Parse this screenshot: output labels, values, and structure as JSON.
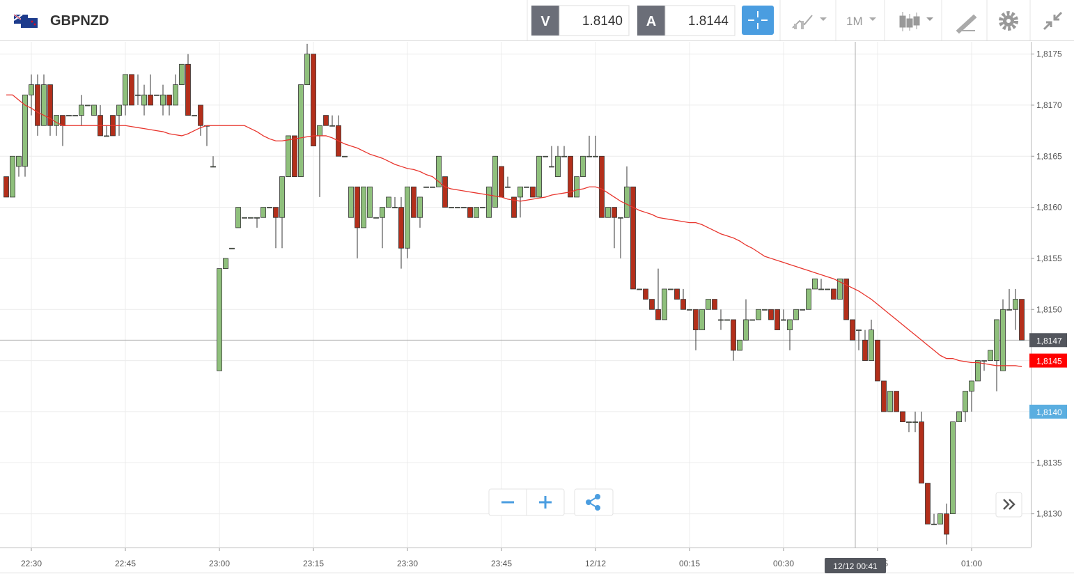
{
  "header": {
    "symbol": "GBPNZD",
    "sell_label": "V",
    "sell_price": "1.8140",
    "buy_label": "A",
    "buy_price": "1.8144",
    "timeframe": "1M"
  },
  "chart_data": {
    "type": "candlestick",
    "up_color": "#8fc07c",
    "down_color": "#b32f1b",
    "grid": true,
    "ylim": [
      1.81267,
      1.81762
    ],
    "yticks": [
      {
        "value": 1.813,
        "label": "1,8130"
      },
      {
        "value": 1.8135,
        "label": "1,8135"
      },
      {
        "value": 1.814,
        "label": "1,8140"
      },
      {
        "value": 1.8145,
        "label": "1,8145"
      },
      {
        "value": 1.815,
        "label": "1,8150"
      },
      {
        "value": 1.8155,
        "label": "1,8155"
      },
      {
        "value": 1.816,
        "label": "1,8160"
      },
      {
        "value": 1.8165,
        "label": "1,8165"
      },
      {
        "value": 1.817,
        "label": "1,8170"
      },
      {
        "value": 1.8175,
        "label": "1,8175"
      }
    ],
    "categories": [
      null,
      null,
      null,
      null,
      "22:30",
      null,
      null,
      null,
      null,
      null,
      null,
      null,
      null,
      null,
      null,
      null,
      null,
      null,
      null,
      "22:45",
      null,
      null,
      null,
      null,
      null,
      null,
      null,
      null,
      null,
      null,
      null,
      null,
      null,
      null,
      "23:00",
      null,
      null,
      null,
      null,
      null,
      null,
      null,
      null,
      null,
      null,
      null,
      null,
      null,
      null,
      "23:15",
      null,
      null,
      null,
      null,
      null,
      null,
      null,
      null,
      null,
      null,
      null,
      null,
      null,
      null,
      "23:30",
      null,
      null,
      null,
      null,
      null,
      null,
      null,
      null,
      null,
      null,
      null,
      null,
      null,
      null,
      "23:45",
      null,
      null,
      null,
      null,
      null,
      null,
      null,
      null,
      null,
      null,
      null,
      null,
      null,
      null,
      "12/12",
      null,
      null,
      null,
      null,
      null,
      null,
      null,
      null,
      null,
      null,
      null,
      null,
      null,
      null,
      "00:15",
      null,
      null,
      null,
      null,
      null,
      null,
      null,
      null,
      null,
      null,
      null,
      null,
      null,
      null,
      "00:30",
      null,
      null,
      null,
      null,
      null,
      null,
      null,
      null,
      null,
      null,
      null,
      null,
      null,
      null,
      "00:45",
      null,
      null,
      null,
      null,
      null,
      null,
      null,
      null,
      null,
      null,
      null,
      null,
      null,
      null,
      "01:00",
      null,
      null,
      null,
      null,
      null,
      null,
      null,
      null
    ],
    "ohlc": [
      [
        1.8163,
        1.8163,
        1.8161,
        1.8161
      ],
      [
        1.8161,
        1.8165,
        1.8161,
        1.8165
      ],
      [
        1.8164,
        1.8165,
        1.8163,
        1.8165
      ],
      [
        1.8164,
        1.8171,
        1.8163,
        1.8171
      ],
      [
        1.8171,
        1.8173,
        1.8169,
        1.8172
      ],
      [
        1.8172,
        1.8173,
        1.8167,
        1.8168
      ],
      [
        1.8168,
        1.8173,
        1.8168,
        1.8172
      ],
      [
        1.8172,
        1.8172,
        1.8167,
        1.8168
      ],
      [
        1.8168,
        1.8169,
        1.8167,
        1.8169
      ],
      [
        1.8169,
        1.8169,
        1.8166,
        1.8168
      ],
      [
        1.8169,
        1.8169,
        1.8169,
        1.8169
      ],
      [
        1.8169,
        1.8169,
        1.8169,
        1.8169
      ],
      [
        1.8169,
        1.8171,
        1.8168,
        1.817
      ],
      [
        1.817,
        1.817,
        1.817,
        1.817
      ],
      [
        1.8169,
        1.817,
        1.8169,
        1.817
      ],
      [
        1.8169,
        1.817,
        1.8167,
        1.8167
      ],
      [
        1.8167,
        1.8168,
        1.8167,
        1.8167
      ],
      [
        1.8169,
        1.8169,
        1.8167,
        1.8167
      ],
      [
        1.8169,
        1.817,
        1.8167,
        1.817
      ],
      [
        1.817,
        1.8173,
        1.8169,
        1.8173
      ],
      [
        1.8173,
        1.8173,
        1.817,
        1.817
      ],
      [
        1.8171,
        1.8173,
        1.817,
        1.8171
      ],
      [
        1.817,
        1.8172,
        1.8169,
        1.8171
      ],
      [
        1.8171,
        1.8173,
        1.817,
        1.817
      ],
      [
        1.8171,
        1.8171,
        1.8171,
        1.8171
      ],
      [
        1.817,
        1.8172,
        1.8169,
        1.8171
      ],
      [
        1.8171,
        1.8171,
        1.8169,
        1.817
      ],
      [
        1.817,
        1.8173,
        1.817,
        1.8172
      ],
      [
        1.8172,
        1.8174,
        1.8172,
        1.8174
      ],
      [
        1.8174,
        1.8175,
        1.8169,
        1.8169
      ],
      [
        1.8169,
        1.8169,
        1.8169,
        1.8169
      ],
      [
        1.817,
        1.817,
        1.8167,
        1.8168
      ],
      [
        1.8168,
        1.8168,
        1.8166,
        1.8168
      ],
      [
        1.8164,
        1.8165,
        1.8164,
        1.8164
      ],
      [
        1.8144,
        1.8154,
        1.8144,
        1.8154
      ],
      [
        1.8154,
        1.8155,
        1.8154,
        1.8155
      ],
      [
        1.8156,
        1.8156,
        1.8156,
        1.8156
      ],
      [
        1.8158,
        1.816,
        1.8158,
        1.816
      ],
      [
        1.8159,
        1.8159,
        1.8159,
        1.8159
      ],
      [
        1.8159,
        1.8159,
        1.8159,
        1.8159
      ],
      [
        1.8159,
        1.8159,
        1.8158,
        1.8159
      ],
      [
        1.8159,
        1.816,
        1.8159,
        1.816
      ],
      [
        1.816,
        1.816,
        1.816,
        1.816
      ],
      [
        1.816,
        1.816,
        1.8156,
        1.8159
      ],
      [
        1.8159,
        1.8163,
        1.8156,
        1.8163
      ],
      [
        1.8163,
        1.8167,
        1.8163,
        1.8167
      ],
      [
        1.8167,
        1.8167,
        1.8163,
        1.8163
      ],
      [
        1.8163,
        1.8172,
        1.8163,
        1.8172
      ],
      [
        1.8172,
        1.8176,
        1.8172,
        1.8175
      ],
      [
        1.8175,
        1.8175,
        1.8166,
        1.8166
      ],
      [
        1.8167,
        1.8168,
        1.8161,
        1.8168
      ],
      [
        1.8169,
        1.8169,
        1.8168,
        1.8168
      ],
      [
        1.8168,
        1.8169,
        1.8168,
        1.8168
      ],
      [
        1.8168,
        1.8169,
        1.8165,
        1.8165
      ],
      [
        1.8165,
        1.8165,
        1.8165,
        1.8165
      ],
      [
        1.8159,
        1.8162,
        1.8159,
        1.8162
      ],
      [
        1.8162,
        1.8162,
        1.8155,
        1.8158
      ],
      [
        1.8158,
        1.8162,
        1.8158,
        1.8162
      ],
      [
        1.8159,
        1.8162,
        1.8159,
        1.8162
      ],
      [
        1.8159,
        1.8159,
        1.8159,
        1.8159
      ],
      [
        1.8159,
        1.816,
        1.8156,
        1.816
      ],
      [
        1.816,
        1.8161,
        1.816,
        1.8161
      ],
      [
        1.816,
        1.8161,
        1.816,
        1.816
      ],
      [
        1.816,
        1.8161,
        1.8154,
        1.8156
      ],
      [
        1.8156,
        1.8162,
        1.8155,
        1.8162
      ],
      [
        1.8162,
        1.8162,
        1.8159,
        1.8159
      ],
      [
        1.8159,
        1.8161,
        1.8158,
        1.8161
      ],
      [
        1.8162,
        1.8162,
        1.8162,
        1.8162
      ],
      [
        1.8162,
        1.8162,
        1.8162,
        1.8162
      ],
      [
        1.8162,
        1.8165,
        1.8162,
        1.8165
      ],
      [
        1.8163,
        1.8163,
        1.816,
        1.816
      ],
      [
        1.816,
        1.816,
        1.816,
        1.816
      ],
      [
        1.816,
        1.816,
        1.816,
        1.816
      ],
      [
        1.816,
        1.816,
        1.816,
        1.816
      ],
      [
        1.816,
        1.816,
        1.8159,
        1.8159
      ],
      [
        1.8159,
        1.816,
        1.8159,
        1.816
      ],
      [
        1.816,
        1.816,
        1.816,
        1.816
      ],
      [
        1.8159,
        1.8162,
        1.8159,
        1.8162
      ],
      [
        1.816,
        1.8165,
        1.816,
        1.8165
      ],
      [
        1.8164,
        1.8164,
        1.8161,
        1.8161
      ],
      [
        1.8162,
        1.8163,
        1.8162,
        1.8162
      ],
      [
        1.8161,
        1.8161,
        1.8159,
        1.8159
      ],
      [
        1.8161,
        1.8162,
        1.8159,
        1.8162
      ],
      [
        1.8162,
        1.8162,
        1.8162,
        1.8162
      ],
      [
        1.8162,
        1.8162,
        1.8161,
        1.8161
      ],
      [
        1.8161,
        1.8165,
        1.8161,
        1.8165
      ],
      [
        1.8165,
        1.8165,
        1.8165,
        1.8165
      ],
      [
        1.8164,
        1.8166,
        1.8164,
        1.8164
      ],
      [
        1.8163,
        1.8166,
        1.8163,
        1.8165
      ],
      [
        1.8165,
        1.8166,
        1.8165,
        1.8165
      ],
      [
        1.8165,
        1.8165,
        1.8161,
        1.8161
      ],
      [
        1.8161,
        1.8163,
        1.8161,
        1.8163
      ],
      [
        1.8163,
        1.8165,
        1.8163,
        1.8165
      ],
      [
        1.8165,
        1.8167,
        1.8165,
        1.8165
      ],
      [
        1.8165,
        1.8167,
        1.8165,
        1.8165
      ],
      [
        1.8165,
        1.8165,
        1.8159,
        1.8159
      ],
      [
        1.8159,
        1.816,
        1.8159,
        1.816
      ],
      [
        1.816,
        1.816,
        1.8156,
        1.8159
      ],
      [
        1.8159,
        1.8159,
        1.8155,
        1.8159
      ],
      [
        1.8159,
        1.8164,
        1.8159,
        1.8162
      ],
      [
        1.8162,
        1.8162,
        1.8152,
        1.8152
      ],
      [
        1.8152,
        1.8152,
        1.8152,
        1.8152
      ],
      [
        1.8152,
        1.8152,
        1.8151,
        1.8151
      ],
      [
        1.8151,
        1.8151,
        1.815,
        1.815
      ],
      [
        1.815,
        1.8154,
        1.8149,
        1.8149
      ],
      [
        1.8149,
        1.8152,
        1.8149,
        1.8152
      ],
      [
        1.8152,
        1.8152,
        1.8152,
        1.8152
      ],
      [
        1.8152,
        1.8152,
        1.8151,
        1.8151
      ],
      [
        1.8151,
        1.8152,
        1.815,
        1.815
      ],
      [
        1.815,
        1.815,
        1.815,
        1.815
      ],
      [
        1.815,
        1.815,
        1.8146,
        1.8148
      ],
      [
        1.8148,
        1.815,
        1.8148,
        1.815
      ],
      [
        1.815,
        1.8151,
        1.815,
        1.8151
      ],
      [
        1.8151,
        1.8151,
        1.815,
        1.815
      ],
      [
        1.8149,
        1.815,
        1.8148,
        1.8149
      ],
      [
        1.8149,
        1.8149,
        1.8149,
        1.8149
      ],
      [
        1.8149,
        1.8149,
        1.8145,
        1.8146
      ],
      [
        1.8146,
        1.8147,
        1.8146,
        1.8147
      ],
      [
        1.8147,
        1.8151,
        1.8147,
        1.8149
      ],
      [
        1.8149,
        1.8149,
        1.8149,
        1.8149
      ],
      [
        1.8149,
        1.815,
        1.8149,
        1.815
      ],
      [
        1.815,
        1.815,
        1.815,
        1.815
      ],
      [
        1.815,
        1.815,
        1.8149,
        1.8149
      ],
      [
        1.815,
        1.815,
        1.8148,
        1.8148
      ],
      [
        1.8149,
        1.815,
        1.8149,
        1.8149
      ],
      [
        1.8148,
        1.8149,
        1.8146,
        1.8149
      ],
      [
        1.8149,
        1.815,
        1.8149,
        1.815
      ],
      [
        1.815,
        1.815,
        1.815,
        1.815
      ],
      [
        1.815,
        1.8152,
        1.815,
        1.8152
      ],
      [
        1.8152,
        1.8153,
        1.8152,
        1.8153
      ],
      [
        1.8152,
        1.8153,
        1.8152,
        1.8152
      ],
      [
        1.8152,
        1.8152,
        1.8152,
        1.8152
      ],
      [
        1.8152,
        1.8152,
        1.8151,
        1.8151
      ],
      [
        1.8151,
        1.8153,
        1.8151,
        1.8153
      ],
      [
        1.8153,
        1.8153,
        1.8149,
        1.8149
      ],
      [
        1.8149,
        1.8149,
        1.8147,
        1.8147
      ],
      [
        1.8148,
        1.8148,
        1.8146,
        1.8148
      ],
      [
        1.8147,
        1.8148,
        1.8145,
        1.8145
      ],
      [
        1.8145,
        1.8149,
        1.8145,
        1.8148
      ],
      [
        1.8147,
        1.8147,
        1.8143,
        1.8143
      ],
      [
        1.8143,
        1.8143,
        1.814,
        1.814
      ],
      [
        1.814,
        1.8142,
        1.814,
        1.8142
      ],
      [
        1.8142,
        1.8142,
        1.814,
        1.814
      ],
      [
        1.814,
        1.814,
        1.8139,
        1.8139
      ],
      [
        1.8139,
        1.8139,
        1.8138,
        1.8139
      ],
      [
        1.8139,
        1.814,
        1.8138,
        1.8139
      ],
      [
        1.8139,
        1.814,
        1.8133,
        1.8133
      ],
      [
        1.8133,
        1.8133,
        1.8129,
        1.8129
      ],
      [
        1.8129,
        1.813,
        1.8129,
        1.8129
      ],
      [
        1.8129,
        1.813,
        1.8129,
        1.813
      ],
      [
        1.813,
        1.8131,
        1.8127,
        1.8128
      ],
      [
        1.813,
        1.8139,
        1.813,
        1.8139
      ],
      [
        1.8139,
        1.814,
        1.8139,
        1.814
      ],
      [
        1.814,
        1.8142,
        1.8139,
        1.8142
      ],
      [
        1.8142,
        1.8143,
        1.814,
        1.8143
      ],
      [
        1.8143,
        1.8145,
        1.8143,
        1.8145
      ],
      [
        1.8145,
        1.8145,
        1.8144,
        1.8145
      ],
      [
        1.8145,
        1.8146,
        1.8145,
        1.8146
      ],
      [
        1.8145,
        1.8149,
        1.8142,
        1.8149
      ],
      [
        1.8144,
        1.8151,
        1.8144,
        1.815
      ],
      [
        1.815,
        1.8152,
        1.815,
        1.815
      ],
      [
        1.815,
        1.8152,
        1.8148,
        1.8151
      ],
      [
        1.8151,
        1.8151,
        1.8147,
        1.8147
      ]
    ],
    "moving_average": {
      "color": "#e8352d",
      "values": [
        1.8171,
        1.8171,
        1.81705,
        1.817,
        1.81697,
        1.81693,
        1.8169,
        1.81687,
        1.81683,
        1.8168,
        1.8168,
        1.8168,
        1.8168,
        1.8168,
        1.8168,
        1.8168,
        1.8168,
        1.8168,
        1.8168,
        1.8168,
        1.81679,
        1.81678,
        1.81677,
        1.81676,
        1.81675,
        1.81674,
        1.81672,
        1.81671,
        1.8167,
        1.81672,
        1.81675,
        1.81678,
        1.8168,
        1.8168,
        1.8168,
        1.8168,
        1.8168,
        1.8168,
        1.8168,
        1.81677,
        1.81674,
        1.8167,
        1.81667,
        1.81665,
        1.81665,
        1.81666,
        1.81667,
        1.81668,
        1.81669,
        1.8167,
        1.8167,
        1.8167,
        1.81668,
        1.81665,
        1.81662,
        1.8166,
        1.81658,
        1.81655,
        1.81652,
        1.8165,
        1.81648,
        1.81645,
        1.81642,
        1.8164,
        1.81638,
        1.81637,
        1.81635,
        1.81632,
        1.8163,
        1.81625,
        1.8162,
        1.81618,
        1.81617,
        1.81616,
        1.81615,
        1.81614,
        1.81613,
        1.81612,
        1.81611,
        1.8161,
        1.81608,
        1.81607,
        1.81606,
        1.81607,
        1.81608,
        1.81609,
        1.8161,
        1.81612,
        1.81613,
        1.81614,
        1.81615,
        1.81617,
        1.81618,
        1.8162,
        1.8162,
        1.81618,
        1.81614,
        1.8161,
        1.81606,
        1.81603,
        1.816,
        1.81597,
        1.81595,
        1.81593,
        1.8159,
        1.81589,
        1.81588,
        1.81587,
        1.81586,
        1.81585,
        1.81585,
        1.81583,
        1.8158,
        1.81577,
        1.81574,
        1.81572,
        1.8157,
        1.81567,
        1.81563,
        1.8156,
        1.81556,
        1.81552,
        1.8155,
        1.81548,
        1.81546,
        1.81544,
        1.81542,
        1.8154,
        1.81538,
        1.81536,
        1.81534,
        1.81532,
        1.8153,
        1.81527,
        1.81524,
        1.81521,
        1.81518,
        1.81514,
        1.8151,
        1.81505,
        1.815,
        1.81495,
        1.8149,
        1.81485,
        1.8148,
        1.81475,
        1.8147,
        1.81465,
        1.8146,
        1.81455,
        1.81452,
        1.81452,
        1.8145,
        1.81449,
        1.81448,
        1.81448,
        1.81447,
        1.81446,
        1.81445,
        1.81445,
        1.81445,
        1.81445,
        1.81444
      ]
    },
    "crosshair": {
      "label": "12/12 00:41",
      "value": 1.8147,
      "value_label": "1,8147",
      "color": "#53565d"
    },
    "price_markers": [
      {
        "value": 1.8145,
        "label": "1,8145",
        "color": "#ff0000"
      },
      {
        "value": 1.814,
        "label": "1,8140",
        "color": "#5aaee0"
      }
    ]
  }
}
